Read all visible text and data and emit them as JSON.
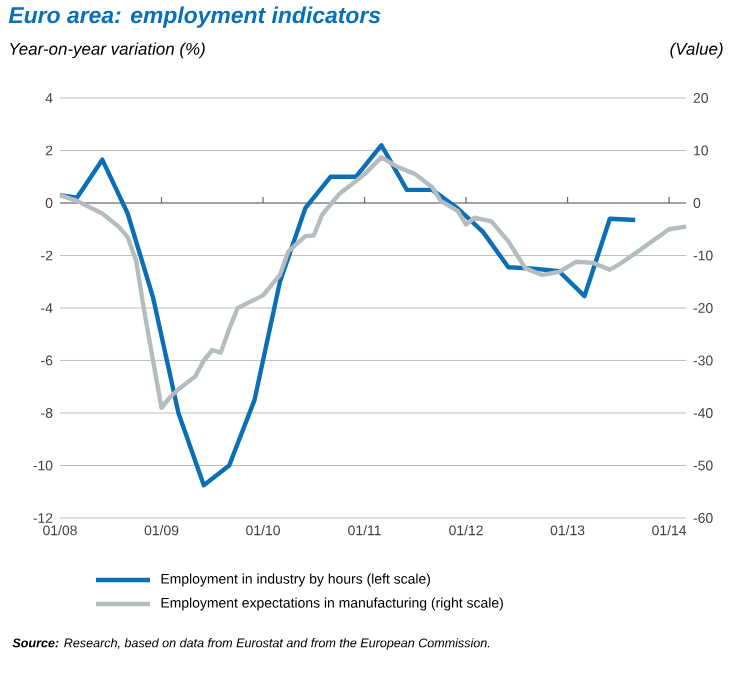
{
  "chart_data": {
    "type": "line",
    "title": "Euro area: employment indicators",
    "ylabel": "Year-on-year variation (%)",
    "y2label": "(Value)",
    "annotations": [
      "**Source:** Research, based on data from Eurostat and from the European Commission."
    ],
    "xlim": [
      "2008-01",
      "2014-03"
    ],
    "xticks": [
      {
        "value": "2008-01",
        "label": "01/08"
      },
      {
        "value": "2009-01",
        "label": "01/09"
      },
      {
        "value": "2010-01",
        "label": "01/10"
      },
      {
        "value": "2011-01",
        "label": "01/11"
      },
      {
        "value": "2012-01",
        "label": "01/12"
      },
      {
        "value": "2013-01",
        "label": "01/13"
      },
      {
        "value": "2014-01",
        "label": "01/14"
      }
    ],
    "ylim": [
      -12,
      4
    ],
    "yticks": [
      -12,
      -10,
      -8,
      -6,
      -4,
      -2,
      0,
      2,
      4
    ],
    "y2lim": [
      -60,
      20
    ],
    "y2ticks": [
      -60,
      -50,
      -40,
      -30,
      -20,
      -10,
      0,
      10,
      20
    ],
    "grid": "y",
    "legend": "bottom",
    "series": [
      {
        "name": "Employment in industry by hours (left scale)",
        "color": "#0a6fb5",
        "x": [
          "2008-01",
          "2008-03",
          "2008-06",
          "2008-09",
          "2008-12",
          "2009-03",
          "2009-06",
          "2009-09",
          "2009-12",
          "2010-03",
          "2010-06",
          "2010-09",
          "2010-12",
          "2011-03",
          "2011-06",
          "2011-09",
          "2011-12",
          "2012-03",
          "2012-06",
          "2012-09",
          "2012-12",
          "2013-03",
          "2013-06",
          "2013-09"
        ],
        "values": [
          0.3,
          0.2,
          1.65,
          -0.4,
          -3.6,
          -8.0,
          -10.75,
          -10.0,
          -7.5,
          -3.0,
          -0.2,
          1.0,
          1.0,
          2.2,
          0.5,
          0.5,
          -0.2,
          -1.1,
          -2.45,
          -2.5,
          -2.6,
          -3.55,
          -0.6,
          -0.65
        ]
      },
      {
        "name": "Employment expectations in manufacturing (right scale)",
        "color": "#b4bcc0",
        "axis": "y2",
        "x": [
          "2008-01",
          "2008-03",
          "2008-06",
          "2008-08",
          "2008-09",
          "2008-10",
          "2008-11",
          "2008-12",
          "2009-01",
          "2009-02",
          "2009-03",
          "2009-05",
          "2009-06",
          "2009-07",
          "2009-08",
          "2009-09",
          "2009-10",
          "2010-01",
          "2010-03",
          "2010-04",
          "2010-06",
          "2010-07",
          "2010-08",
          "2010-10",
          "2010-12",
          "2011-01",
          "2011-03",
          "2011-05",
          "2011-07",
          "2011-09",
          "2011-10",
          "2011-12",
          "2012-01",
          "2012-02",
          "2012-04",
          "2012-06",
          "2012-08",
          "2012-10",
          "2012-12",
          "2013-02",
          "2013-04",
          "2013-06",
          "2013-07",
          "2013-09",
          "2013-11",
          "2014-01",
          "2014-03"
        ],
        "values": [
          1.5,
          0.4,
          -2,
          -4.6,
          -6.5,
          -11,
          -21,
          -30,
          -39,
          -37,
          -35.5,
          -33,
          -30,
          -28,
          -28.5,
          -24,
          -20,
          -17.6,
          -13.7,
          -9.2,
          -6.3,
          -6.2,
          -2.2,
          1.7,
          4.2,
          5.5,
          8.7,
          6.8,
          5.5,
          3,
          0.4,
          -1.5,
          -4.1,
          -2.8,
          -3.5,
          -7.3,
          -12.4,
          -13.7,
          -13.1,
          -11.2,
          -11.4,
          -12.7,
          -11.8,
          -9.6,
          -7.3,
          -5,
          -4.5
        ]
      }
    ]
  }
}
